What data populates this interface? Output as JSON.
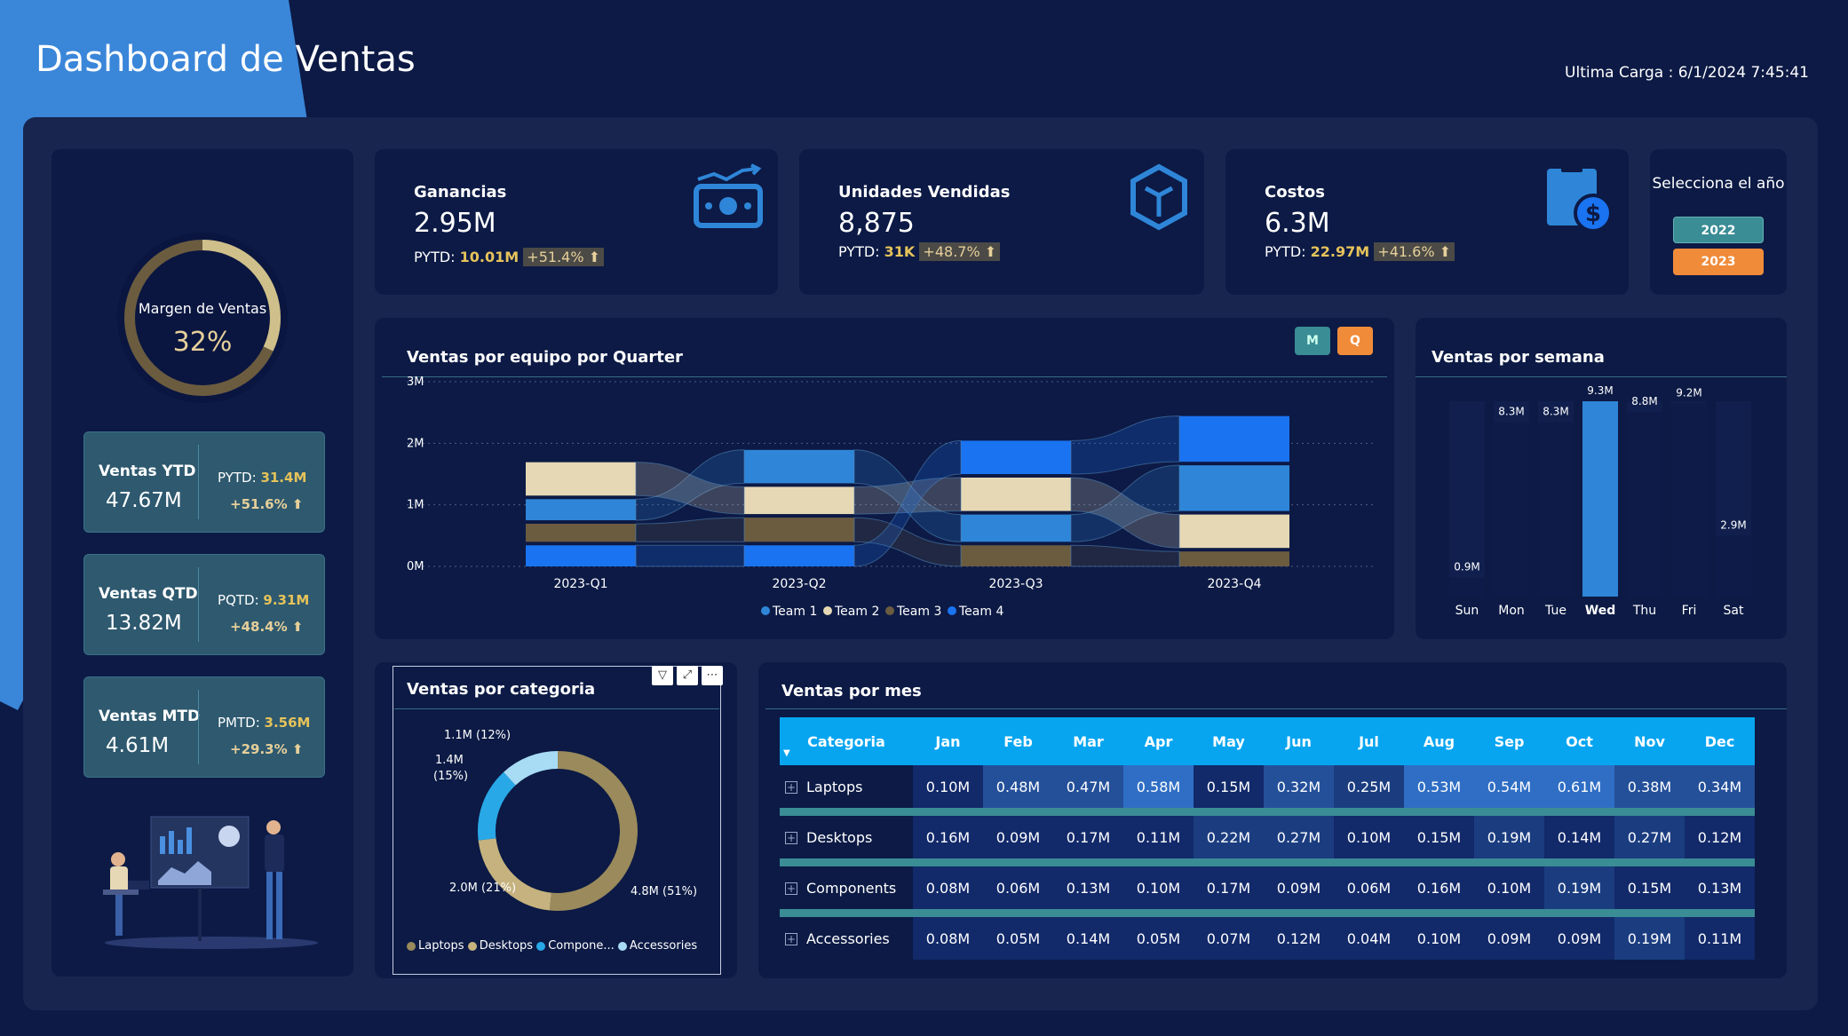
{
  "header": {
    "title": "Dashboard de Ventas",
    "last_load": "Ultima Carga : 6/1/2024 7:45:41"
  },
  "left_panel": {
    "gauge": {
      "label": "Margen de Ventas",
      "value": "32%",
      "fraction": 0.32
    },
    "kpis": [
      {
        "title": "Ventas YTD",
        "value": "47.67M",
        "prev_label": "PYTD:",
        "prev_value": "31.4M",
        "growth": "+51.6%"
      },
      {
        "title": "Ventas QTD",
        "value": "13.82M",
        "prev_label": "PQTD:",
        "prev_value": "9.31M",
        "growth": "+48.4%"
      },
      {
        "title": "Ventas MTD",
        "value": "4.61M",
        "prev_label": "PMTD:",
        "prev_value": "3.56M",
        "growth": "+29.3%"
      }
    ]
  },
  "stats": [
    {
      "title": "Ganancias",
      "value": "2.95M",
      "prev_label": "PYTD:",
      "prev_value": "10.01M",
      "growth": "+51.4%",
      "icon": "money-trend-icon"
    },
    {
      "title": "Unidades Vendidas",
      "value": "8,875",
      "prev_label": "PYTD:",
      "prev_value": "31K",
      "growth": "+48.7%",
      "icon": "box-icon"
    },
    {
      "title": "Costos",
      "value": "6.3M",
      "prev_label": "PYTD:",
      "prev_value": "22.97M",
      "growth": "+41.6%",
      "icon": "cost-dollar-icon"
    }
  ],
  "year_selector": {
    "label": "Selecciona el año",
    "options": [
      {
        "label": "2022",
        "color": "#3a8c95"
      },
      {
        "label": "2023",
        "color": "#f08b3a"
      }
    ]
  },
  "colors": {
    "team1": "#2f86d8",
    "team2": "#e6d8b4",
    "team3": "#6b5c40",
    "team4": "#1a73f0",
    "gold": "#e6c35a",
    "cat_laptops": "#9a8a5c",
    "cat_desktops": "#c5b27e",
    "cat_components": "#29a8e8",
    "cat_accessories": "#a8dcf5"
  },
  "team_chart": {
    "title": "Ventas por equipo por Quarter",
    "toggles": [
      {
        "label": "M",
        "bg": "#3a8c95"
      },
      {
        "label": "Q",
        "bg": "#f08b3a"
      }
    ],
    "legend": [
      "Team 1",
      "Team 2",
      "Team 3",
      "Team 4"
    ]
  },
  "week_chart": {
    "title": "Ventas por semana"
  },
  "category_chart": {
    "title": "Ventas por categoria",
    "legend": [
      "Laptops",
      "Desktops",
      "Compone...",
      "Accessories"
    ]
  },
  "month_table": {
    "title": "Ventas por mes",
    "category_header": "Categoria",
    "columns": [
      "Jan",
      "Feb",
      "Mar",
      "Apr",
      "May",
      "Jun",
      "Jul",
      "Aug",
      "Sep",
      "Oct",
      "Nov",
      "Dec"
    ],
    "rows": [
      {
        "name": "Laptops",
        "values": [
          "0.10M",
          "0.48M",
          "0.47M",
          "0.58M",
          "0.15M",
          "0.32M",
          "0.25M",
          "0.53M",
          "0.54M",
          "0.61M",
          "0.38M",
          "0.34M"
        ]
      },
      {
        "name": "Desktops",
        "values": [
          "0.16M",
          "0.09M",
          "0.17M",
          "0.11M",
          "0.22M",
          "0.27M",
          "0.10M",
          "0.15M",
          "0.19M",
          "0.14M",
          "0.27M",
          "0.12M"
        ]
      },
      {
        "name": "Components",
        "values": [
          "0.08M",
          "0.06M",
          "0.13M",
          "0.10M",
          "0.17M",
          "0.09M",
          "0.06M",
          "0.16M",
          "0.10M",
          "0.19M",
          "0.15M",
          "0.13M"
        ]
      },
      {
        "name": "Accessories",
        "values": [
          "0.08M",
          "0.05M",
          "0.14M",
          "0.05M",
          "0.07M",
          "0.12M",
          "0.04M",
          "0.10M",
          "0.09M",
          "0.09M",
          "0.19M",
          "0.11M"
        ]
      }
    ]
  },
  "chart_data": [
    {
      "type": "bar",
      "title": "Ventas por equipo por Quarter",
      "categories": [
        "2023-Q1",
        "2023-Q2",
        "2023-Q3",
        "2023-Q4"
      ],
      "y_ticks": [
        "0M",
        "1M",
        "2M",
        "3M"
      ],
      "ylim": [
        0,
        3
      ],
      "stacked": true,
      "series": [
        {
          "name": "Team 1",
          "values": [
            0.4,
            0.6,
            0.5,
            0.8
          ]
        },
        {
          "name": "Team 2",
          "values": [
            0.6,
            0.5,
            0.6,
            0.6
          ]
        },
        {
          "name": "Team 3",
          "values": [
            0.35,
            0.45,
            0.4,
            0.3
          ]
        },
        {
          "name": "Team 4",
          "values": [
            0.4,
            0.4,
            0.6,
            0.8
          ]
        }
      ],
      "legend": "bottom"
    },
    {
      "type": "bar",
      "title": "Ventas por semana",
      "categories": [
        "Sun",
        "Mon",
        "Tue",
        "Wed",
        "Thu",
        "Fri",
        "Sat"
      ],
      "values": [
        0.9,
        8.3,
        8.3,
        9.3,
        8.8,
        9.2,
        2.9
      ],
      "labels": [
        "0.9M",
        "8.3M",
        "8.3M",
        "9.3M",
        "8.8M",
        "9.2M",
        "2.9M"
      ],
      "highlight": "Wed"
    },
    {
      "type": "pie",
      "title": "Ventas por categoria",
      "categories": [
        "Laptops",
        "Desktops",
        "Components",
        "Accessories"
      ],
      "values": [
        4.8,
        2.0,
        1.4,
        1.1
      ],
      "labels": [
        "4.8M (51%)",
        "2.0M (21%)",
        "1.4M\n(15%)",
        "1.1M (12%)"
      ],
      "donut": true,
      "legend": "bottom"
    }
  ]
}
